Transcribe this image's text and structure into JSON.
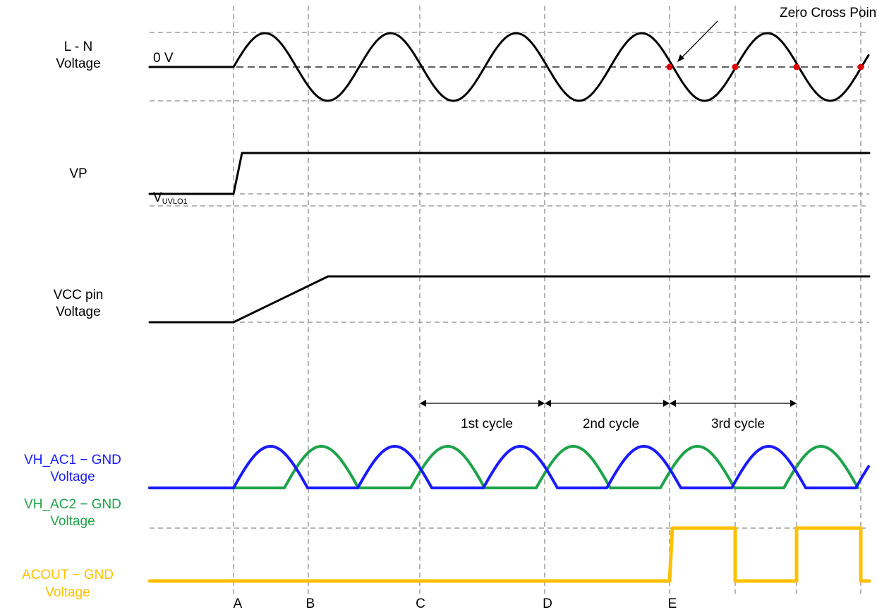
{
  "annotation": "Zero Cross Points",
  "signals": {
    "ln": {
      "label_line1": "L - N",
      "label_line2": "Voltage",
      "level_label": "0 V",
      "color": "#000000"
    },
    "vp": {
      "label": "VP",
      "color": "#000000"
    },
    "vcc": {
      "label_line1": "VCC pin",
      "label_line2": "Voltage",
      "level_label_main": "V",
      "level_label_sub": "UVLO1",
      "color": "#000000"
    },
    "vhac1": {
      "label_line1": "VH_AC1 − GND",
      "label_line2": "Voltage",
      "color": "#1a1aff"
    },
    "vhac2": {
      "label_line1": "VH_AC2 − GND",
      "label_line2": "Voltage",
      "color": "#1ea34a"
    },
    "acout": {
      "label_line1": "ACOUT − GND",
      "label_line2": "Voltage",
      "color": "#ffc000"
    }
  },
  "cycles": [
    "1st cycle",
    "2nd cycle",
    "3rd cycle"
  ],
  "time_markers": [
    "A",
    "B",
    "C",
    "D",
    "E"
  ],
  "zero_cross_color": "#e00000"
}
